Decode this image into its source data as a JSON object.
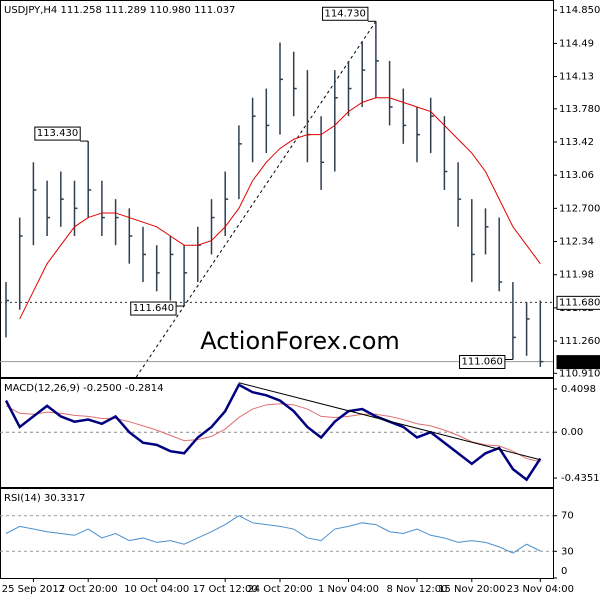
{
  "chart_data": [
    {
      "type": "ohlc",
      "title": "USDJPY,H4 111.258 111.289 110.980 111.037",
      "color": "#2f3f4f",
      "high": [
        111.9,
        112.6,
        113.2,
        113.0,
        113.1,
        113.0,
        113.43,
        113.0,
        112.8,
        112.7,
        112.5,
        112.3,
        112.4,
        112.3,
        112.5,
        112.8,
        113.1,
        113.6,
        113.9,
        114.0,
        114.5,
        114.4,
        114.2,
        113.7,
        114.2,
        114.3,
        114.5,
        114.73,
        114.3,
        114.0,
        113.8,
        113.9,
        113.7,
        113.2,
        112.8,
        112.7,
        112.6,
        111.9,
        111.68,
        111.7
      ],
      "low": [
        111.3,
        111.6,
        112.3,
        112.4,
        112.5,
        112.4,
        112.6,
        112.4,
        112.3,
        112.1,
        111.9,
        111.8,
        111.7,
        111.64,
        111.9,
        112.2,
        112.4,
        112.8,
        113.2,
        113.3,
        113.5,
        113.7,
        113.2,
        112.9,
        113.1,
        113.7,
        113.8,
        113.9,
        113.6,
        113.4,
        113.2,
        113.3,
        112.9,
        112.5,
        111.9,
        112.2,
        111.8,
        111.06,
        111.1,
        110.98
      ],
      "close": [
        111.7,
        112.4,
        112.9,
        112.6,
        112.8,
        112.7,
        112.9,
        112.6,
        112.6,
        112.4,
        112.2,
        112.0,
        112.2,
        112.0,
        112.3,
        112.6,
        112.8,
        113.4,
        113.7,
        113.6,
        114.1,
        114.0,
        113.5,
        113.2,
        113.9,
        114.0,
        114.2,
        114.3,
        113.8,
        113.6,
        113.5,
        113.7,
        113.1,
        112.8,
        112.2,
        112.5,
        111.9,
        111.3,
        111.5,
        111.037
      ],
      "ma": {
        "color": "#e00000",
        "values": [
          null,
          111.5,
          111.8,
          112.1,
          112.3,
          112.5,
          112.6,
          112.65,
          112.65,
          112.6,
          112.55,
          112.5,
          112.4,
          112.3,
          112.3,
          112.35,
          112.5,
          112.7,
          113.0,
          113.2,
          113.35,
          113.45,
          113.5,
          113.5,
          113.6,
          113.75,
          113.85,
          113.9,
          113.9,
          113.85,
          113.8,
          113.75,
          113.6,
          113.45,
          113.3,
          113.1,
          112.8,
          112.5,
          112.3,
          112.1
        ]
      },
      "ylim": [
        110.87,
        114.95
      ],
      "yticks": [
        {
          "value": 114.85,
          "label": "114.850"
        },
        114.49,
        114.13,
        {
          "value": 113.78,
          "label": "113.780"
        },
        113.42,
        113.06,
        {
          "value": 112.7,
          "label": "112.700"
        },
        112.34,
        111.98,
        111.62,
        {
          "value": 111.26,
          "label": "111.260"
        },
        {
          "value": 110.91,
          "label": "110.910"
        }
      ],
      "levels": [
        {
          "value": 111.68,
          "label": "111.680"
        },
        {
          "value": 111.037,
          "label": "111.037"
        }
      ],
      "annotations": [
        {
          "value": 114.73,
          "label": "114.730"
        },
        {
          "value": 113.43,
          "label": "113.430"
        },
        {
          "value": 111.64,
          "label": "111.640"
        },
        {
          "value": 111.06,
          "label": "111.060"
        }
      ],
      "watermark": "ActionForex.com",
      "xticks": [
        {
          "value": 2,
          "label": "25 Sep 2017"
        },
        {
          "value": 6,
          "label": "2 Oct 20:00"
        },
        {
          "value": 11,
          "label": "10 Oct 04:00"
        },
        {
          "value": 16,
          "label": "17 Oct 12:00"
        },
        {
          "value": 20,
          "label": "24 Oct 20:00"
        },
        {
          "value": 25,
          "label": "1 Nov 04:00"
        },
        {
          "value": 30,
          "label": "8 Nov 12:00"
        },
        {
          "value": 34,
          "label": "15 Nov 20:00"
        },
        {
          "value": 39,
          "label": "23 Nov 04:00"
        }
      ]
    },
    {
      "type": "macd",
      "title": "MACD(12,26,9) -0.2500 -0.2814",
      "macd": {
        "color": "#000080",
        "values": [
          0.3,
          0.05,
          0.15,
          0.25,
          0.15,
          0.1,
          0.12,
          0.08,
          0.15,
          0.0,
          -0.1,
          -0.12,
          -0.18,
          -0.2,
          -0.05,
          0.05,
          0.2,
          0.45,
          0.38,
          0.35,
          0.3,
          0.2,
          0.05,
          -0.05,
          0.1,
          0.2,
          0.22,
          0.15,
          0.1,
          0.05,
          -0.05,
          0.0,
          -0.1,
          -0.2,
          -0.3,
          -0.2,
          -0.15,
          -0.35,
          -0.45,
          -0.25
        ]
      },
      "signal": {
        "color": "#e07070",
        "values": [
          0.25,
          0.18,
          0.17,
          0.19,
          0.18,
          0.16,
          0.15,
          0.13,
          0.13,
          0.1,
          0.06,
          0.02,
          -0.03,
          -0.08,
          -0.07,
          -0.04,
          0.03,
          0.14,
          0.22,
          0.26,
          0.27,
          0.26,
          0.22,
          0.15,
          0.14,
          0.15,
          0.17,
          0.17,
          0.15,
          0.12,
          0.08,
          0.06,
          0.02,
          -0.03,
          -0.09,
          -0.12,
          -0.13,
          -0.18,
          -0.25,
          -0.28
        ]
      },
      "ylim": [
        -0.52,
        0.505
      ],
      "yticks": [
        0.4098,
        {
          "value": 0,
          "label": "0.00"
        },
        -0.4351
      ]
    },
    {
      "type": "rsi",
      "title": "RSI(14) 30.3317",
      "color": "#4a90d0",
      "values": [
        50,
        58,
        55,
        52,
        50,
        48,
        55,
        45,
        50,
        42,
        45,
        40,
        42,
        38,
        45,
        52,
        60,
        70,
        62,
        60,
        58,
        55,
        45,
        42,
        55,
        58,
        62,
        60,
        52,
        50,
        55,
        48,
        45,
        40,
        42,
        40,
        35,
        28,
        38,
        30.3317
      ],
      "ylim": [
        0,
        100
      ],
      "yticks": [
        0,
        30,
        70
      ]
    }
  ]
}
